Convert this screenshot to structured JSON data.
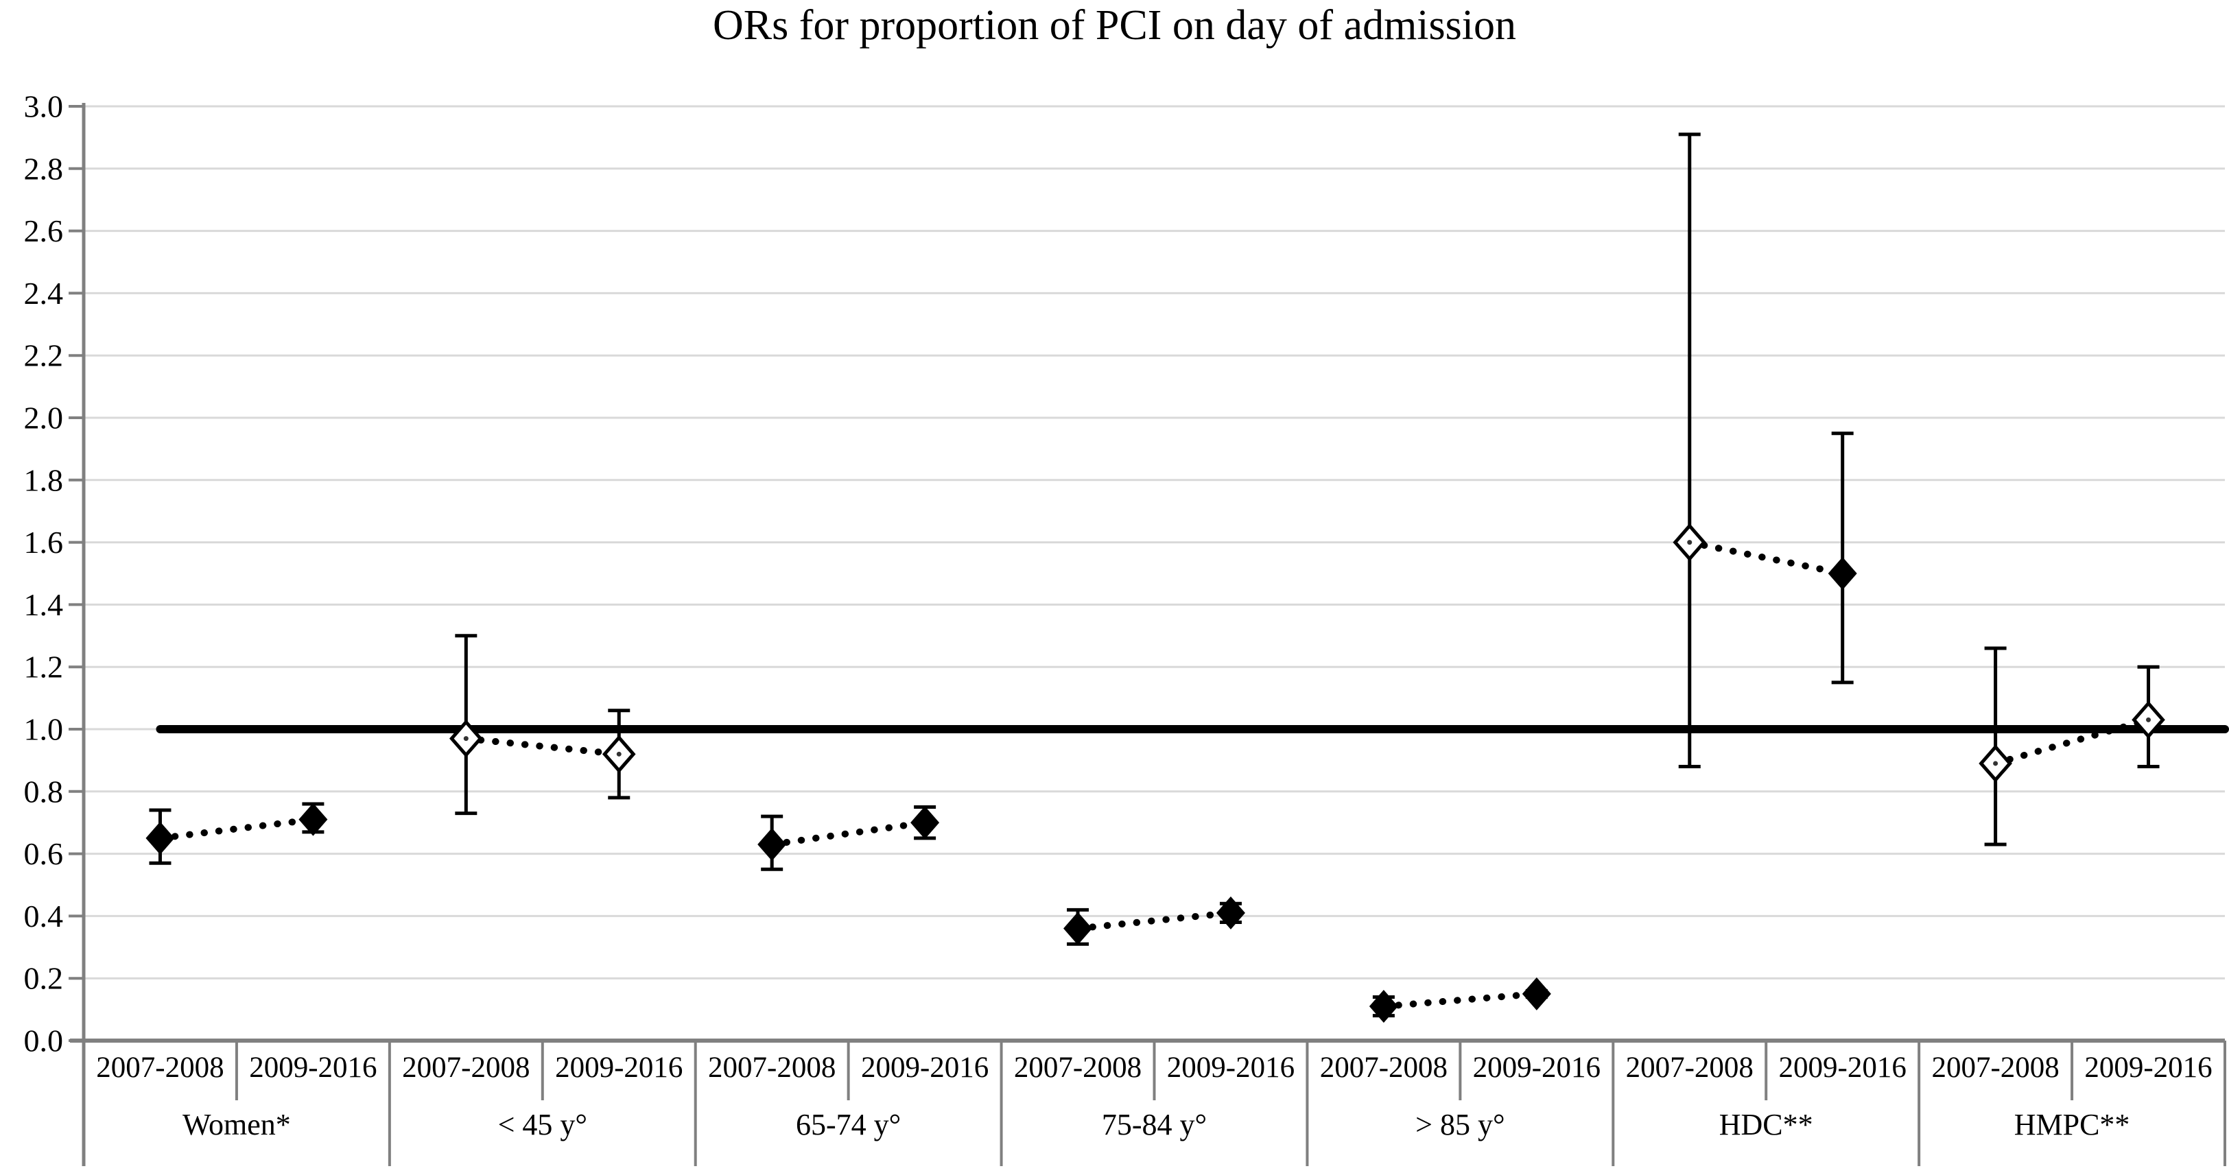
{
  "title": "ORs for proportion of PCI on day of admission",
  "colors": {
    "background": "#ffffff",
    "grid": "#d9d9d9",
    "axis": "#808080",
    "marker": "#000000",
    "marker_open_fill": "#ffffff",
    "marker_center_dot": "#333333",
    "reference_line": "#000000",
    "error_bar": "#000000",
    "connector": "#000000",
    "text": "#000000"
  },
  "chart_data": {
    "type": "scatter",
    "title": "ORs for proportion of PCI on day of admission",
    "ylabel": "",
    "xlabel": "",
    "ylim": [
      0.0,
      3.0
    ],
    "ytick_step": 0.2,
    "yticks": [
      "0.0",
      "0.2",
      "0.4",
      "0.6",
      "0.8",
      "1.0",
      "1.2",
      "1.4",
      "1.6",
      "1.8",
      "2.0",
      "2.2",
      "2.4",
      "2.6",
      "2.8",
      "3.0"
    ],
    "reference_line_y": 1.0,
    "grid": true,
    "legend": "none",
    "marker_legend_note": "filled diamond = CI excludes 1.0, open diamond = CI includes 1.0",
    "period_labels": [
      "2007-2008",
      "2009-2016"
    ],
    "groups": [
      {
        "label": "Women*",
        "points": [
          {
            "period": "2007-2008",
            "or": 0.65,
            "ci_low": 0.57,
            "ci_high": 0.74,
            "marker": "filled"
          },
          {
            "period": "2009-2016",
            "or": 0.71,
            "ci_low": 0.67,
            "ci_high": 0.76,
            "marker": "filled"
          }
        ]
      },
      {
        "label": "< 45 y°",
        "points": [
          {
            "period": "2007-2008",
            "or": 0.97,
            "ci_low": 0.73,
            "ci_high": 1.3,
            "marker": "open"
          },
          {
            "period": "2009-2016",
            "or": 0.92,
            "ci_low": 0.78,
            "ci_high": 1.06,
            "marker": "open"
          }
        ]
      },
      {
        "label": "65-74 y°",
        "points": [
          {
            "period": "2007-2008",
            "or": 0.63,
            "ci_low": 0.55,
            "ci_high": 0.72,
            "marker": "filled"
          },
          {
            "period": "2009-2016",
            "or": 0.7,
            "ci_low": 0.65,
            "ci_high": 0.75,
            "marker": "filled"
          }
        ]
      },
      {
        "label": "75-84 y°",
        "points": [
          {
            "period": "2007-2008",
            "or": 0.36,
            "ci_low": 0.31,
            "ci_high": 0.42,
            "marker": "filled"
          },
          {
            "period": "2009-2016",
            "or": 0.41,
            "ci_low": 0.38,
            "ci_high": 0.44,
            "marker": "filled"
          }
        ]
      },
      {
        "label": "> 85 y°",
        "points": [
          {
            "period": "2007-2008",
            "or": 0.11,
            "ci_low": 0.08,
            "ci_high": 0.14,
            "marker": "filled"
          },
          {
            "period": "2009-2016",
            "or": 0.15,
            "ci_low": 0.14,
            "ci_high": 0.16,
            "marker": "filled"
          }
        ]
      },
      {
        "label": "HDC**",
        "points": [
          {
            "period": "2007-2008",
            "or": 1.6,
            "ci_low": 0.88,
            "ci_high": 2.91,
            "marker": "open"
          },
          {
            "period": "2009-2016",
            "or": 1.5,
            "ci_low": 1.15,
            "ci_high": 1.95,
            "marker": "filled"
          }
        ]
      },
      {
        "label": "HMPC**",
        "points": [
          {
            "period": "2007-2008",
            "or": 0.89,
            "ci_low": 0.63,
            "ci_high": 1.26,
            "marker": "open"
          },
          {
            "period": "2009-2016",
            "or": 1.03,
            "ci_low": 0.88,
            "ci_high": 1.2,
            "marker": "open"
          }
        ]
      }
    ]
  }
}
